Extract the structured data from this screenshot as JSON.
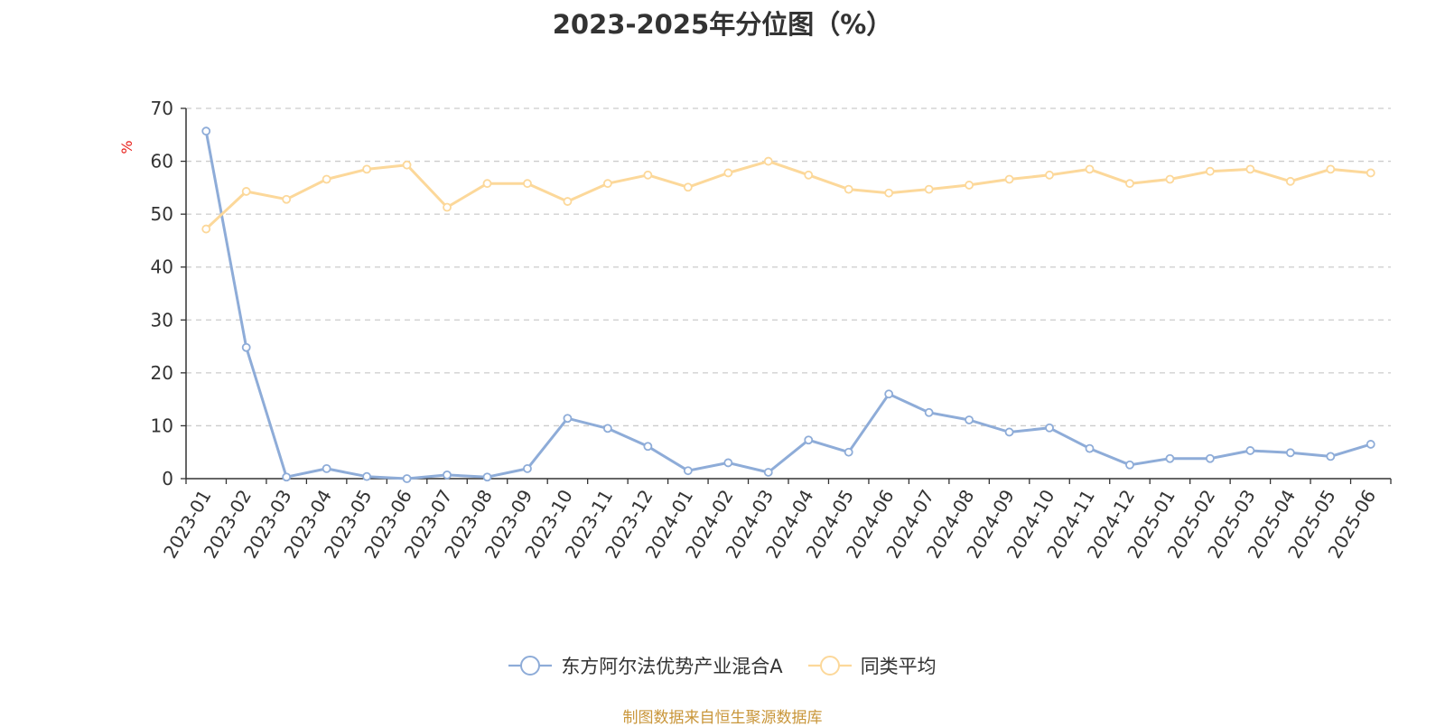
{
  "chart_data": {
    "type": "line",
    "title": "2023-2025年分位图（%）",
    "ylabel": "%",
    "ylim": [
      0,
      70
    ],
    "yticks": [
      0,
      10,
      20,
      30,
      40,
      50,
      60,
      70
    ],
    "grid": true,
    "legend_position": "bottom",
    "x": [
      "2023-01",
      "2023-02",
      "2023-03",
      "2023-04",
      "2023-05",
      "2023-06",
      "2023-07",
      "2023-08",
      "2023-09",
      "2023-10",
      "2023-11",
      "2023-12",
      "2024-01",
      "2024-02",
      "2024-03",
      "2024-04",
      "2024-05",
      "2024-06",
      "2024-07",
      "2024-08",
      "2024-09",
      "2024-10",
      "2024-11",
      "2024-12",
      "2025-01",
      "2025-02",
      "2025-03",
      "2025-04",
      "2025-05",
      "2025-06"
    ],
    "series": [
      {
        "name": "东方阿尔法优势产业混合A",
        "color": "#8eacd8",
        "values": [
          65.7,
          24.8,
          0.3,
          1.9,
          0.4,
          0.0,
          0.7,
          0.3,
          1.9,
          11.4,
          9.5,
          6.1,
          1.5,
          3.0,
          1.2,
          7.3,
          5.0,
          16.0,
          12.5,
          11.1,
          8.8,
          9.6,
          5.7,
          2.6,
          3.8,
          3.8,
          5.3,
          4.9,
          4.2,
          6.5
        ]
      },
      {
        "name": "同类平均",
        "color": "#fcd89a",
        "values": [
          47.2,
          54.3,
          52.8,
          56.6,
          58.5,
          59.3,
          51.3,
          55.8,
          55.8,
          52.4,
          55.8,
          57.4,
          55.1,
          57.8,
          60.0,
          57.4,
          54.7,
          54.0,
          54.7,
          55.5,
          56.6,
          57.4,
          58.5,
          55.8,
          56.6,
          58.1,
          58.5,
          56.2,
          58.5,
          57.8
        ]
      }
    ]
  },
  "footer": {
    "source": "制图数据来自恒生聚源数据库"
  }
}
